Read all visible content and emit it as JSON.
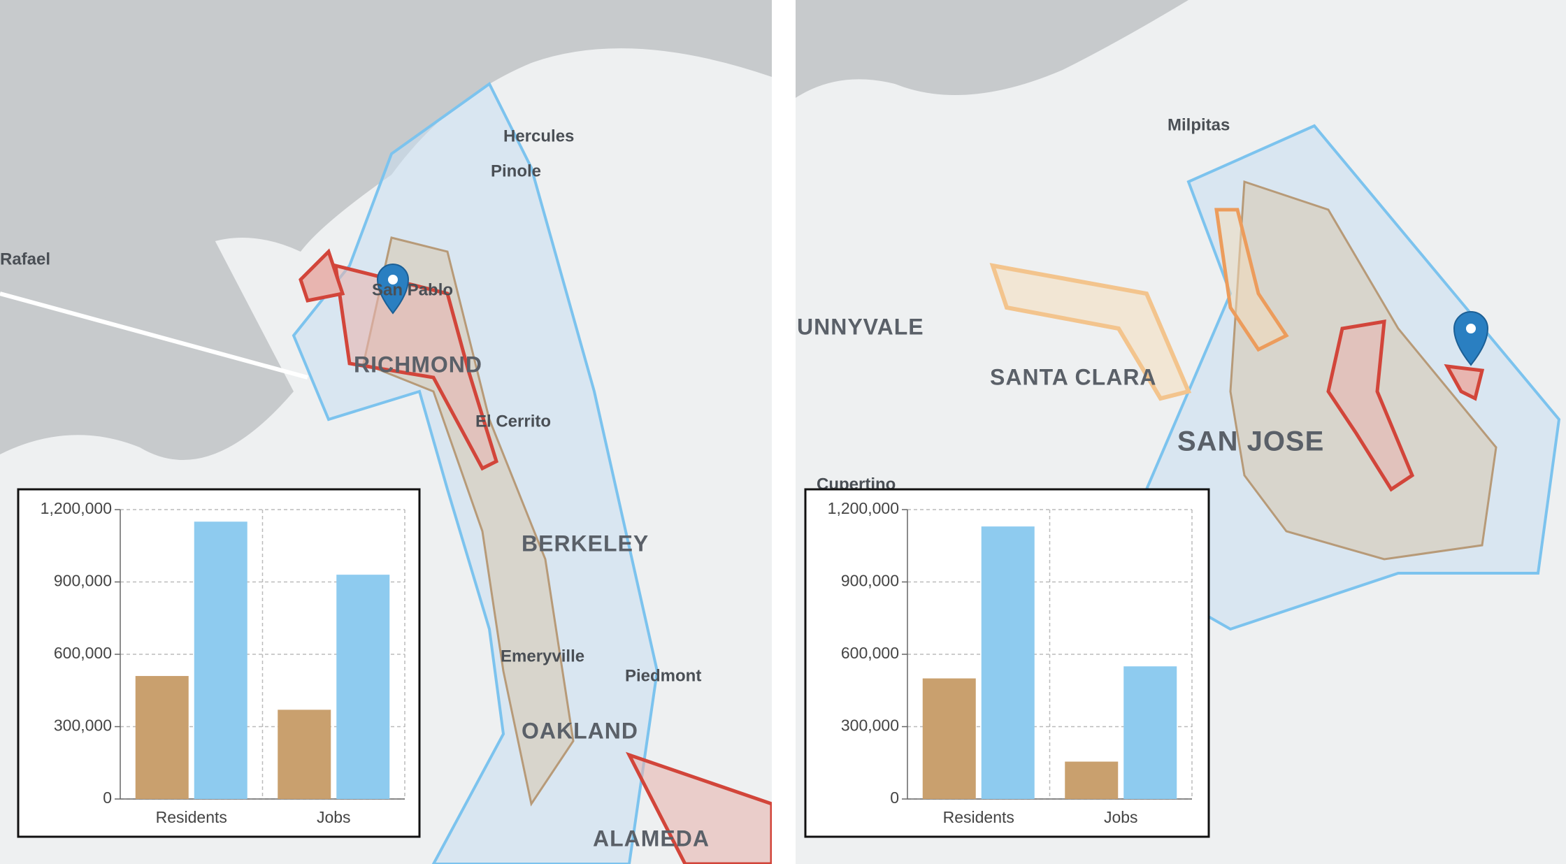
{
  "chart_data": [
    {
      "type": "bar",
      "categories": [
        "Residents",
        "Jobs"
      ],
      "series": [
        {
          "color": "#c9a06e",
          "values": [
            510000,
            370000
          ]
        },
        {
          "color": "#8ecbef",
          "values": [
            1150000,
            930000
          ]
        }
      ],
      "ylim": [
        0,
        1200000
      ],
      "yticks": [
        0,
        {
          "value": 300000,
          "label": "300,000"
        },
        {
          "value": 600000,
          "label": "600,000"
        },
        {
          "value": 900000,
          "label": "900,000"
        },
        {
          "value": 1200000,
          "label": "1,200,000"
        }
      ],
      "grid": true
    },
    {
      "type": "bar",
      "categories": [
        "Residents",
        "Jobs"
      ],
      "series": [
        {
          "color": "#c9a06e",
          "values": [
            500000,
            155000
          ]
        },
        {
          "color": "#8ecbef",
          "values": [
            1130000,
            550000
          ]
        }
      ],
      "ylim": [
        0,
        1200000
      ],
      "yticks": [
        0,
        {
          "value": 300000,
          "label": "300,000"
        },
        {
          "value": 600000,
          "label": "600,000"
        },
        {
          "value": 900000,
          "label": "900,000"
        },
        {
          "value": 1200000,
          "label": "1,200,000"
        }
      ],
      "grid": true
    }
  ],
  "map_labels": {
    "left": [
      "Hercules",
      "Pinole",
      "Rafael",
      "San Pablo",
      "RICHMOND",
      "El Cerrito",
      "BERKELEY",
      "Emeryville",
      "Piedmont",
      "OAKLAND",
      "ALAMEDA"
    ],
    "right": [
      "Milpitas",
      "UNNYVALE",
      "SANTA CLARA",
      "SAN JOSE",
      "Cupertino"
    ]
  }
}
